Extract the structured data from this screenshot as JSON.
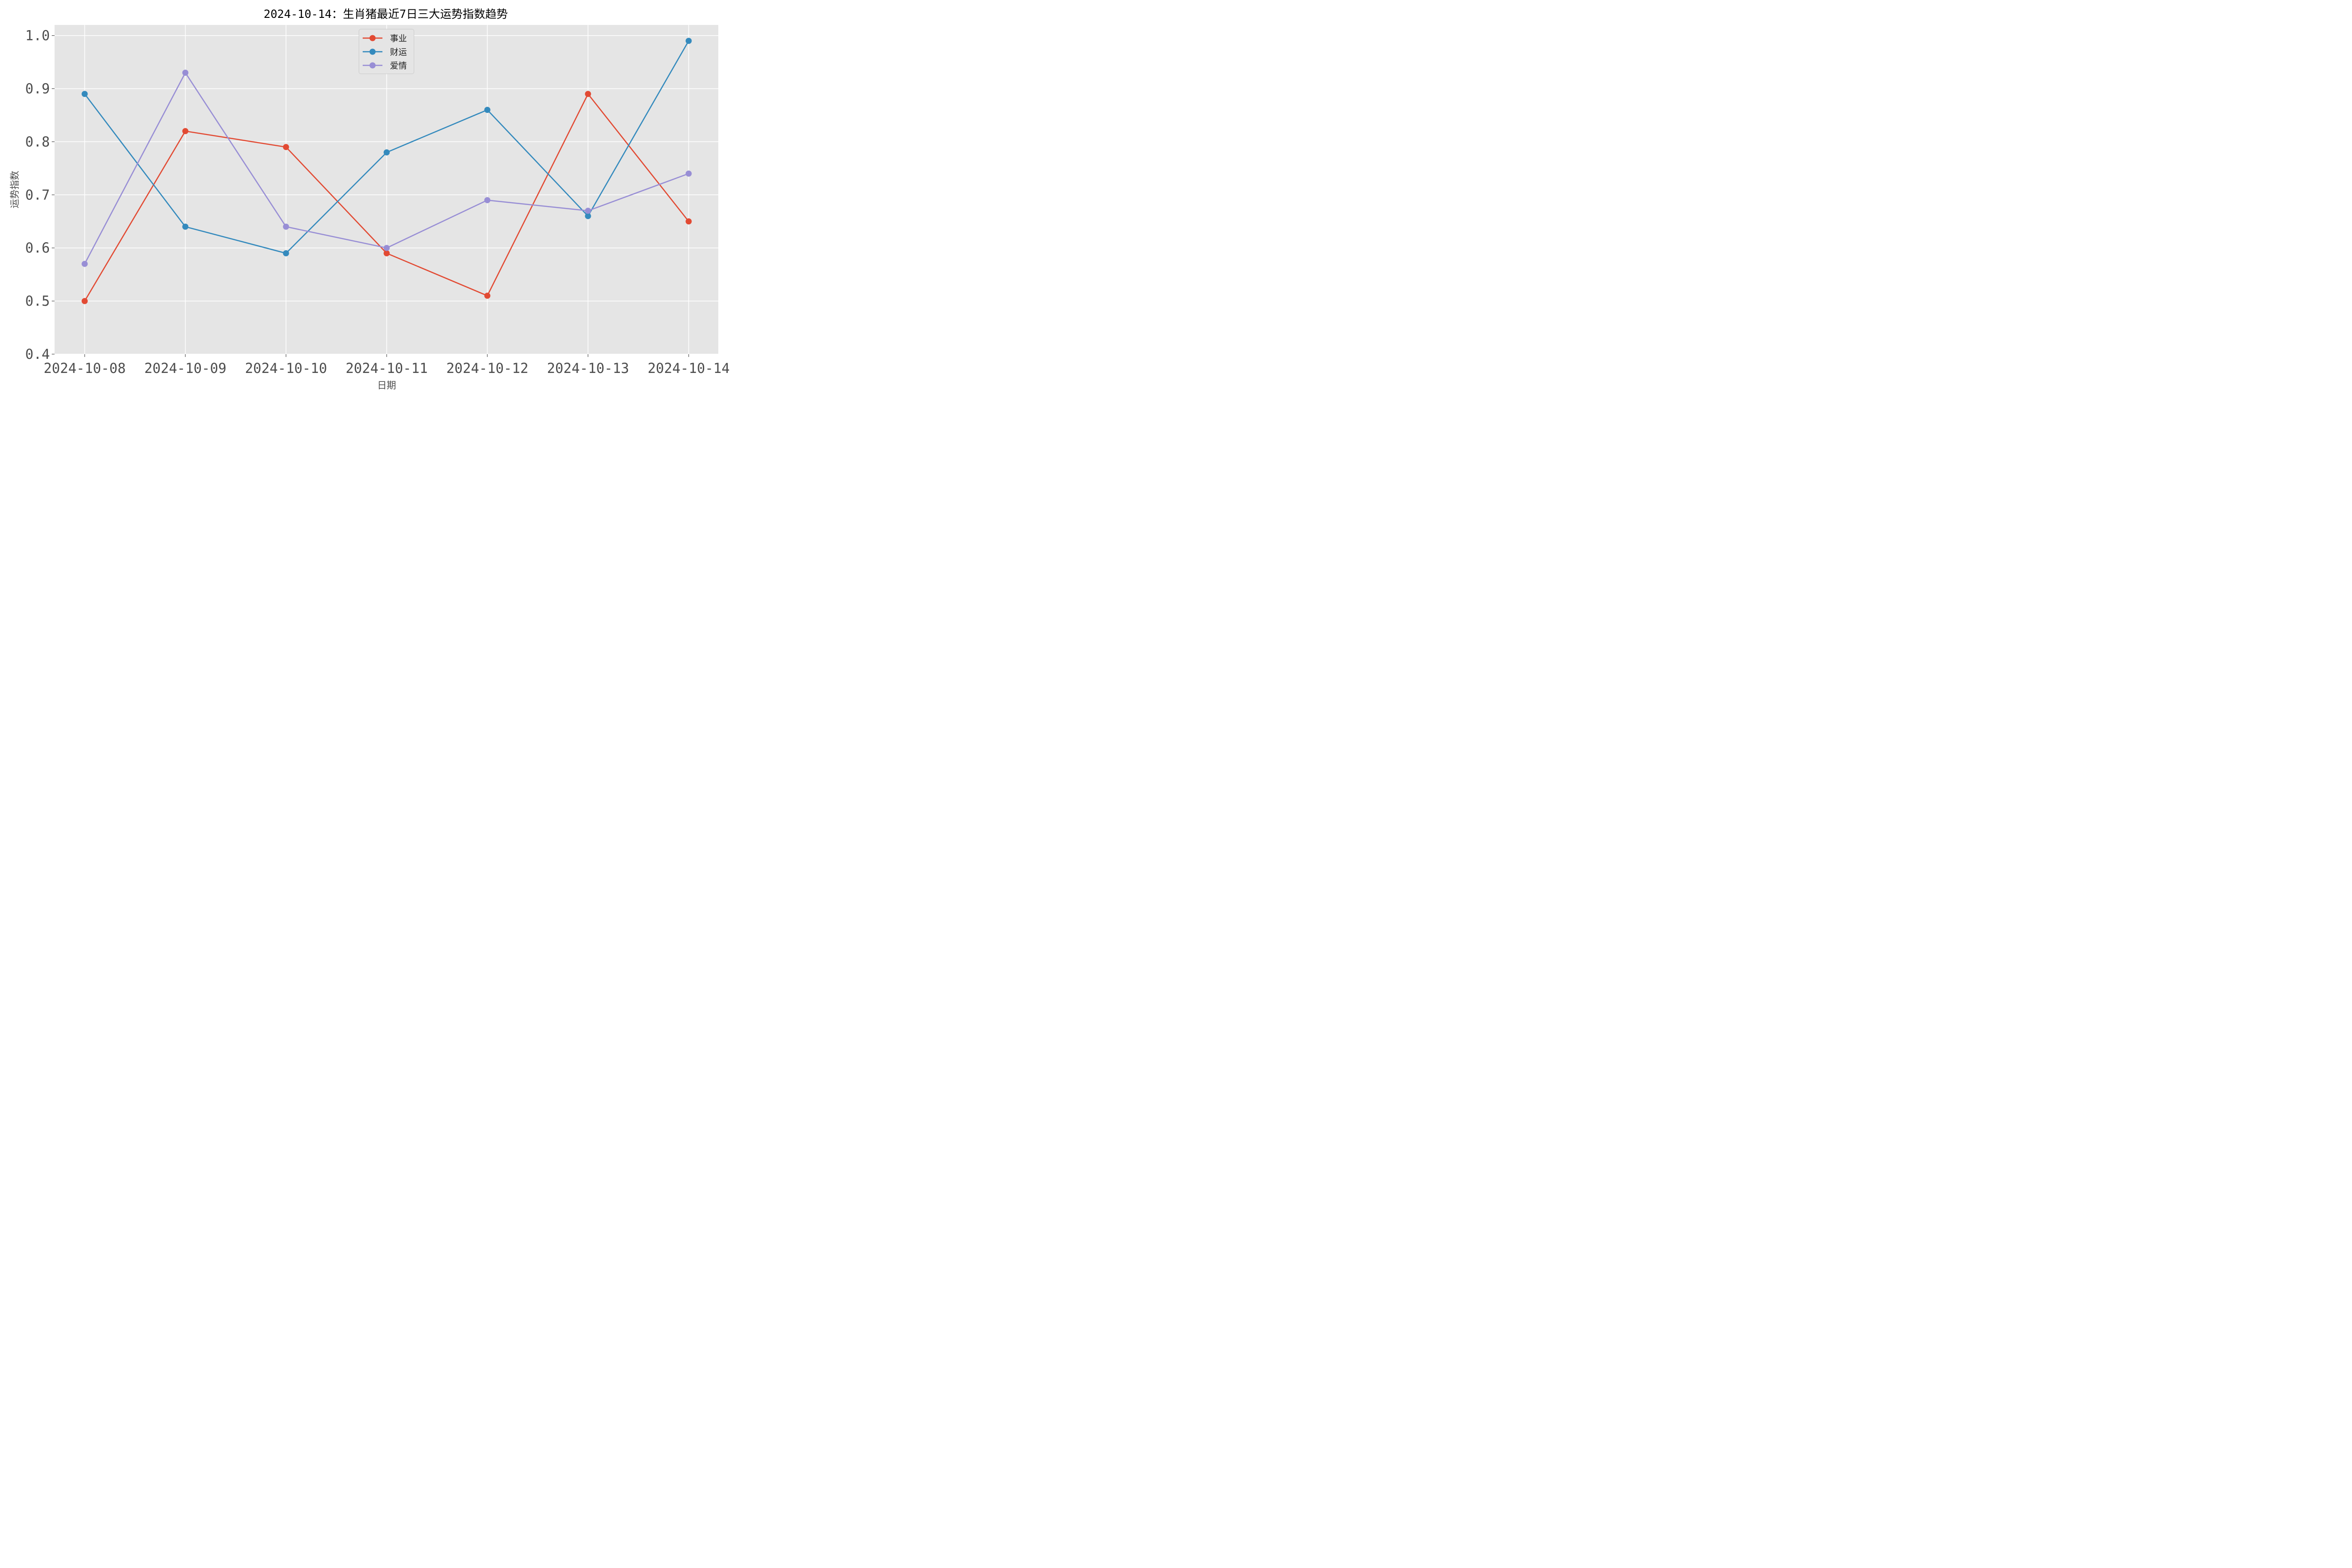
{
  "chart_data": {
    "type": "line",
    "title": "2024-10-14：生肖猪最近7日三大运势指数趋势",
    "xlabel": "日期",
    "ylabel": "运势指数",
    "categories": [
      "2024-10-08",
      "2024-10-09",
      "2024-10-10",
      "2024-10-11",
      "2024-10-12",
      "2024-10-13",
      "2024-10-14"
    ],
    "y_ticks": [
      "0.4",
      "0.5",
      "0.6",
      "0.7",
      "0.8",
      "0.9",
      "1.0"
    ],
    "ylim": [
      0.4,
      1.02
    ],
    "grid": true,
    "legend_position": "top-center",
    "series": [
      {
        "name": "事业",
        "color": "#E24A33",
        "values": [
          0.5,
          0.82,
          0.79,
          0.59,
          0.51,
          0.89,
          0.65
        ]
      },
      {
        "name": "财运",
        "color": "#348ABD",
        "values": [
          0.89,
          0.64,
          0.59,
          0.78,
          0.86,
          0.66,
          0.99
        ]
      },
      {
        "name": "爱情",
        "color": "#988ED5",
        "values": [
          0.57,
          0.93,
          0.64,
          0.6,
          0.69,
          0.67,
          0.74
        ]
      }
    ]
  }
}
